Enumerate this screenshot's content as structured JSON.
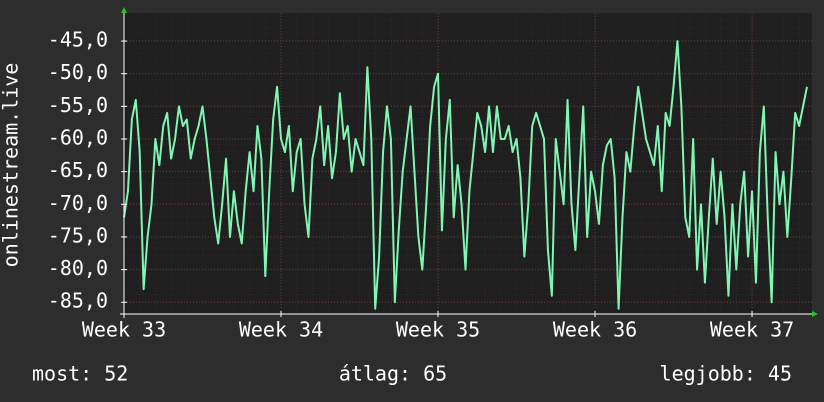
{
  "chart_data": {
    "type": "line",
    "y_label": "onlinestream.live",
    "color": "#80f5b4",
    "grid": true,
    "x": [
      33,
      33.025,
      33.05,
      33.075,
      33.1,
      33.125,
      33.15,
      33.175,
      33.2,
      33.225,
      33.25,
      33.275,
      33.3,
      33.325,
      33.35,
      33.375,
      33.4,
      33.425,
      33.45,
      33.475,
      33.5,
      33.525,
      33.55,
      33.575,
      33.6,
      33.625,
      33.65,
      33.675,
      33.7,
      33.725,
      33.75,
      33.775,
      33.8,
      33.825,
      33.85,
      33.875,
      33.9,
      33.925,
      33.95,
      33.975,
      34,
      34.025,
      34.05,
      34.075,
      34.1,
      34.125,
      34.15,
      34.175,
      34.2,
      34.225,
      34.25,
      34.275,
      34.3,
      34.325,
      34.35,
      34.375,
      34.4,
      34.425,
      34.45,
      34.475,
      34.5,
      34.525,
      34.55,
      34.575,
      34.6,
      34.625,
      34.65,
      34.675,
      34.7,
      34.725,
      34.75,
      34.775,
      34.8,
      34.825,
      34.85,
      34.875,
      34.9,
      34.925,
      34.95,
      34.975,
      35,
      35.025,
      35.05,
      35.075,
      35.1,
      35.125,
      35.15,
      35.175,
      35.2,
      35.225,
      35.25,
      35.275,
      35.3,
      35.325,
      35.35,
      35.375,
      35.4,
      35.425,
      35.45,
      35.475,
      35.5,
      35.525,
      35.55,
      35.575,
      35.6,
      35.625,
      35.65,
      35.675,
      35.7,
      35.725,
      35.75,
      35.775,
      35.8,
      35.825,
      35.85,
      35.875,
      35.9,
      35.925,
      35.95,
      35.975,
      36,
      36.025,
      36.05,
      36.075,
      36.1,
      36.125,
      36.15,
      36.175,
      36.2,
      36.225,
      36.25,
      36.275,
      36.3,
      36.325,
      36.35,
      36.375,
      36.4,
      36.425,
      36.45,
      36.475,
      36.5,
      36.525,
      36.55,
      36.575,
      36.6,
      36.625,
      36.65,
      36.675,
      36.7,
      36.725,
      36.75,
      36.775,
      36.8,
      36.825,
      36.85,
      36.875,
      36.9,
      36.925,
      36.95,
      36.975,
      37,
      37.025,
      37.05,
      37.075,
      37.1,
      37.125,
      37.15,
      37.175,
      37.2,
      37.225,
      37.25,
      37.275,
      37.3,
      37.325,
      37.35
    ],
    "values": [
      -72,
      -68,
      -57,
      -54,
      -62,
      -83,
      -75,
      -70,
      -60,
      -64,
      -58,
      -56,
      -63,
      -60,
      -55,
      -58,
      -57,
      -63,
      -60,
      -58,
      -55,
      -60,
      -66,
      -72,
      -76,
      -70,
      -63,
      -75,
      -68,
      -73,
      -76,
      -68,
      -62,
      -68,
      -58,
      -63,
      -81,
      -68,
      -57,
      -52,
      -60,
      -62,
      -58,
      -68,
      -62,
      -60,
      -70,
      -75,
      -63,
      -60,
      -55,
      -64,
      -58,
      -66,
      -62,
      -53,
      -60,
      -58,
      -65,
      -60,
      -62,
      -64,
      -49,
      -60,
      -86,
      -78,
      -62,
      -55,
      -60,
      -85,
      -74,
      -65,
      -60,
      -55,
      -65,
      -75,
      -80,
      -70,
      -58,
      -52,
      -50,
      -74,
      -60,
      -54,
      -72,
      -64,
      -70,
      -80,
      -68,
      -62,
      -56,
      -58,
      -62,
      -55,
      -62,
      -55,
      -60,
      -60,
      -58,
      -62,
      -60,
      -66,
      -78,
      -70,
      -58,
      -56,
      -58,
      -60,
      -77,
      -84,
      -60,
      -65,
      -70,
      -54,
      -70,
      -77,
      -66,
      -55,
      -75,
      -65,
      -68,
      -73,
      -64,
      -61,
      -60,
      -66,
      -86,
      -72,
      -62,
      -65,
      -58,
      -52,
      -56,
      -60,
      -62,
      -64,
      -58,
      -68,
      -56,
      -58,
      -52,
      -45,
      -55,
      -72,
      -75,
      -60,
      -80,
      -70,
      -82,
      -72,
      -63,
      -73,
      -65,
      -72,
      -84,
      -70,
      -80,
      -70,
      -65,
      -78,
      -68,
      -82,
      -62,
      -55,
      -72,
      -85,
      -62,
      -70,
      -65,
      -75,
      -66,
      -56,
      -58,
      -55,
      -52
    ],
    "xlim": [
      33,
      37.382
    ],
    "xticks": [
      {
        "value": 33,
        "label": "Week 33"
      },
      {
        "value": 34,
        "label": "Week 34"
      },
      {
        "value": 35,
        "label": "Week 35"
      },
      {
        "value": 36,
        "label": "Week 36"
      },
      {
        "value": 37,
        "label": "Week 37"
      }
    ],
    "ylim": [
      -86.8,
      -40.7
    ],
    "yticks": [
      {
        "value": -45,
        "label": "-45,0"
      },
      {
        "value": -50,
        "label": "-50,0"
      },
      {
        "value": -55,
        "label": "-55,0"
      },
      {
        "value": -60,
        "label": "-60,0"
      },
      {
        "value": -65,
        "label": "-65,0"
      },
      {
        "value": -70,
        "label": "-70,0"
      },
      {
        "value": -75,
        "label": "-75,0"
      },
      {
        "value": -80,
        "label": "-80,0"
      },
      {
        "value": -85,
        "label": "-85,0"
      }
    ],
    "stats": [
      "most: 52",
      "átlag: 65",
      "legjobb: 45"
    ]
  }
}
